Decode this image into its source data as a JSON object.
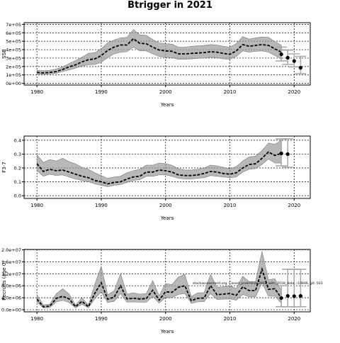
{
  "figure": {
    "title": "Btrigger in 2021",
    "note": "stockassessment.org, Coned_preliminar-2018_with_2018_data, r10846, git: 503"
  },
  "chart_data": [
    {
      "type": "line",
      "title": "",
      "xlabel": "Years",
      "ylabel": "SSB",
      "xlim": [
        1978,
        2022.5
      ],
      "ylim": [
        -20000,
        720000
      ],
      "x_ticks": [
        1980,
        1990,
        2000,
        2010,
        2020
      ],
      "x_tick_labels": [
        "1980",
        "1990",
        "2000",
        "2010",
        "2020"
      ],
      "y_ticks": [
        0,
        100000,
        200000,
        300000,
        400000,
        500000,
        600000,
        700000
      ],
      "y_tick_labels": [
        "0e+00",
        "1e+05",
        "2e+05",
        "3e+05",
        "4e+05",
        "5e+05",
        "6e+05",
        "7e+05"
      ],
      "grid": true,
      "x": [
        1980,
        1981,
        1982,
        1983,
        1984,
        1985,
        1986,
        1987,
        1988,
        1989,
        1990,
        1991,
        1992,
        1993,
        1994,
        1995,
        1996,
        1997,
        1998,
        1999,
        2000,
        2001,
        2002,
        2003,
        2004,
        2005,
        2006,
        2007,
        2008,
        2009,
        2010,
        2011,
        2012,
        2013,
        2014,
        2015,
        2016,
        2017,
        2018
      ],
      "series": [
        {
          "values": [
            130000,
            125000,
            130000,
            140000,
            165000,
            195000,
            220000,
            255000,
            280000,
            290000,
            330000,
            390000,
            430000,
            455000,
            455000,
            530000,
            475000,
            470000,
            430000,
            395000,
            385000,
            380000,
            350000,
            350000,
            355000,
            360000,
            365000,
            375000,
            370000,
            355000,
            345000,
            385000,
            460000,
            440000,
            450000,
            460000,
            450000,
            410000,
            370000
          ],
          "lower": [
            110000,
            105000,
            110000,
            120000,
            140000,
            160000,
            180000,
            205000,
            220000,
            225000,
            250000,
            305000,
            350000,
            370000,
            375000,
            430000,
            385000,
            385000,
            350000,
            320000,
            310000,
            305000,
            285000,
            285000,
            290000,
            295000,
            300000,
            310000,
            305000,
            290000,
            285000,
            320000,
            385000,
            370000,
            380000,
            385000,
            370000,
            330000,
            290000
          ],
          "upper": [
            155000,
            150000,
            155000,
            170000,
            195000,
            235000,
            270000,
            310000,
            355000,
            365000,
            410000,
            480000,
            515000,
            540000,
            545000,
            640000,
            575000,
            570000,
            520000,
            480000,
            470000,
            465000,
            430000,
            430000,
            440000,
            445000,
            450000,
            460000,
            455000,
            440000,
            430000,
            470000,
            555000,
            525000,
            540000,
            550000,
            545000,
            495000,
            455000
          ]
        }
      ],
      "projection": {
        "x": [
          2018,
          2019,
          2020,
          2021
        ],
        "values": [
          345000,
          305000,
          265000,
          185000
        ],
        "lower": [
          265000,
          225000,
          195000,
          115000
        ],
        "upper": [
          430000,
          395000,
          350000,
          320000
        ]
      }
    },
    {
      "type": "line",
      "title": "",
      "xlabel": "Years",
      "ylabel": "F3-7",
      "xlim": [
        1978,
        2022.5
      ],
      "ylim": [
        -0.02,
        0.43
      ],
      "x_ticks": [
        1980,
        1990,
        2000,
        2010,
        2020
      ],
      "x_tick_labels": [
        "1980",
        "1990",
        "2000",
        "2010",
        "2020"
      ],
      "y_ticks": [
        0.0,
        0.1,
        0.2,
        0.3,
        0.4
      ],
      "y_tick_labels": [
        "0.0",
        "0.1",
        "0.2",
        "0.3",
        "0.4"
      ],
      "grid": true,
      "x": [
        1980,
        1981,
        1982,
        1983,
        1984,
        1985,
        1986,
        1987,
        1988,
        1989,
        1990,
        1991,
        1992,
        1993,
        1994,
        1995,
        1996,
        1997,
        1998,
        1999,
        2000,
        2001,
        2002,
        2003,
        2004,
        2005,
        2006,
        2007,
        2008,
        2009,
        2010,
        2011,
        2012,
        2013,
        2014,
        2015,
        2016,
        2017,
        2018
      ],
      "series": [
        {
          "values": [
            0.23,
            0.175,
            0.19,
            0.18,
            0.185,
            0.17,
            0.155,
            0.14,
            0.13,
            0.11,
            0.1,
            0.085,
            0.095,
            0.1,
            0.12,
            0.135,
            0.14,
            0.17,
            0.17,
            0.185,
            0.18,
            0.17,
            0.15,
            0.145,
            0.145,
            0.15,
            0.16,
            0.175,
            0.17,
            0.16,
            0.155,
            0.165,
            0.2,
            0.225,
            0.23,
            0.27,
            0.315,
            0.29,
            0.305
          ],
          "lower": [
            0.18,
            0.14,
            0.155,
            0.145,
            0.15,
            0.135,
            0.12,
            0.11,
            0.1,
            0.085,
            0.075,
            0.065,
            0.075,
            0.08,
            0.095,
            0.11,
            0.115,
            0.14,
            0.14,
            0.15,
            0.15,
            0.14,
            0.125,
            0.12,
            0.12,
            0.125,
            0.13,
            0.145,
            0.14,
            0.135,
            0.13,
            0.135,
            0.17,
            0.19,
            0.195,
            0.225,
            0.265,
            0.235,
            0.235
          ],
          "upper": [
            0.295,
            0.24,
            0.26,
            0.25,
            0.27,
            0.245,
            0.23,
            0.205,
            0.19,
            0.165,
            0.145,
            0.125,
            0.135,
            0.14,
            0.165,
            0.18,
            0.19,
            0.22,
            0.22,
            0.235,
            0.23,
            0.22,
            0.195,
            0.185,
            0.185,
            0.19,
            0.2,
            0.22,
            0.215,
            0.205,
            0.195,
            0.21,
            0.25,
            0.28,
            0.285,
            0.325,
            0.38,
            0.37,
            0.4
          ]
        }
      ],
      "projection": {
        "x": [
          2018,
          2019
        ],
        "values": [
          0.305,
          0.3
        ],
        "lower": [
          0.215,
          0.205
        ],
        "upper": [
          0.41,
          0.41
        ]
      }
    },
    {
      "type": "line",
      "title": "",
      "xlabel": "Years",
      "ylabel": "Recruits (age 0)",
      "xlim": [
        1978,
        2022.5
      ],
      "ylim": [
        -700000,
        20100000
      ],
      "x_ticks": [
        1980,
        1990,
        2000,
        2010,
        2020
      ],
      "x_tick_labels": [
        "1980",
        "1990",
        "2000",
        "2010",
        "2020"
      ],
      "y_ticks": [
        0,
        4000000,
        8000000,
        12000000,
        16000000,
        20000000
      ],
      "y_tick_labels": [
        "0.0e+00",
        "4.0e+06",
        "8.0e+06",
        "1.2e+07",
        "1.6e+07",
        "2.0e+07"
      ],
      "grid": true,
      "x": [
        1980,
        1981,
        1982,
        1983,
        1984,
        1985,
        1986,
        1987,
        1988,
        1989,
        1990,
        1991,
        1992,
        1993,
        1994,
        1995,
        1996,
        1997,
        1998,
        1999,
        2000,
        2001,
        2002,
        2003,
        2004,
        2005,
        2006,
        2007,
        2008,
        2009,
        2010,
        2011,
        2012,
        2013,
        2014,
        2015,
        2016,
        2017,
        2018
      ],
      "series": [
        {
          "values": [
            3500000,
            1000000,
            1200000,
            3800000,
            4500000,
            3600000,
            1000000,
            2800000,
            1000000,
            5500000,
            9000000,
            3500000,
            4200000,
            8000000,
            3600000,
            3800000,
            3600000,
            3700000,
            6500000,
            3200000,
            6000000,
            5800000,
            7500000,
            8000000,
            3000000,
            3800000,
            3900000,
            8000000,
            5000000,
            5200000,
            5400000,
            4800000,
            7600000,
            6400000,
            6400000,
            13500000,
            6800000,
            7000000,
            3900000
          ],
          "lower": [
            2500000,
            600000,
            700000,
            2600000,
            3100000,
            2400000,
            600000,
            1800000,
            600000,
            3700000,
            6000000,
            2400000,
            2800000,
            5400000,
            2500000,
            2600000,
            2500000,
            2500000,
            4400000,
            2200000,
            4100000,
            4000000,
            5100000,
            5400000,
            2100000,
            2600000,
            2700000,
            5400000,
            3400000,
            3500000,
            3600000,
            3200000,
            5100000,
            4300000,
            4300000,
            9000000,
            4500000,
            4500000,
            2200000
          ],
          "upper": [
            5000000,
            1600000,
            1900000,
            5300000,
            7000000,
            5200000,
            1600000,
            4000000,
            1600000,
            8500000,
            14500000,
            5000000,
            6300000,
            12000000,
            5200000,
            5600000,
            5200000,
            5400000,
            9700000,
            4700000,
            8700000,
            8400000,
            10900000,
            11800000,
            4400000,
            5600000,
            5700000,
            11800000,
            7400000,
            7700000,
            8000000,
            7100000,
            11200000,
            9400000,
            9400000,
            19500000,
            10000000,
            10300000,
            6400000
          ]
        }
      ],
      "projection": {
        "x": [
          2018,
          2019,
          2020,
          2021
        ],
        "values": [
          3900000,
          4600000,
          4500000,
          4600000
        ],
        "lower": [
          1000000,
          1000000,
          1000000,
          1000000
        ],
        "upper": [
          8000000,
          13500000,
          13500000,
          13500000
        ]
      }
    }
  ]
}
